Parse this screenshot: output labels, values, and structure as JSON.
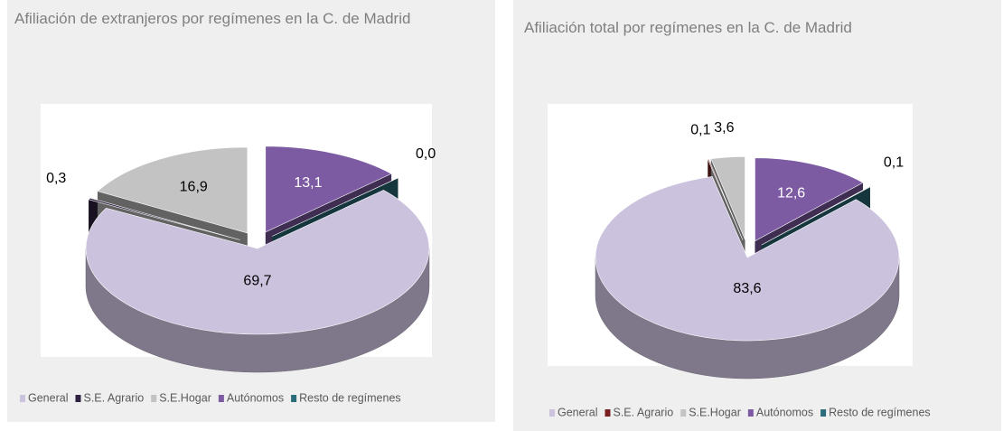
{
  "chart_data": [
    {
      "type": "pie",
      "title": "Afiliación de extranjeros por regímenes en la C. de Madrid",
      "categories": [
        "General",
        "S.E. Agrario",
        "S.E.Hogar",
        "Autónomos",
        "Resto de regímenes"
      ],
      "values": [
        69.7,
        0.3,
        16.9,
        13.1,
        0.0
      ],
      "value_labels": [
        "69,7",
        "0,3",
        "16,9",
        "13,1",
        "0,0"
      ],
      "colors": [
        "#cbc2de",
        "#2f2240",
        "#c3c3c3",
        "#7d5ba3",
        "#2b6c7a"
      ],
      "legend": "bottom"
    },
    {
      "type": "pie",
      "title": "Afiliación total por regímenes en la C. de Madrid",
      "categories": [
        "General",
        "S.E. Agrario",
        "S.E.Hogar",
        "Autónomos",
        "Resto de regímenes"
      ],
      "values": [
        83.6,
        0.1,
        3.6,
        12.6,
        0.1
      ],
      "value_labels": [
        "83,6",
        "0,1",
        "3,6",
        "12,6",
        "0,1"
      ],
      "colors": [
        "#cbc2de",
        "#7a1f22",
        "#c3c3c3",
        "#7d5ba3",
        "#2b6c7a"
      ],
      "legend": "bottom"
    }
  ]
}
